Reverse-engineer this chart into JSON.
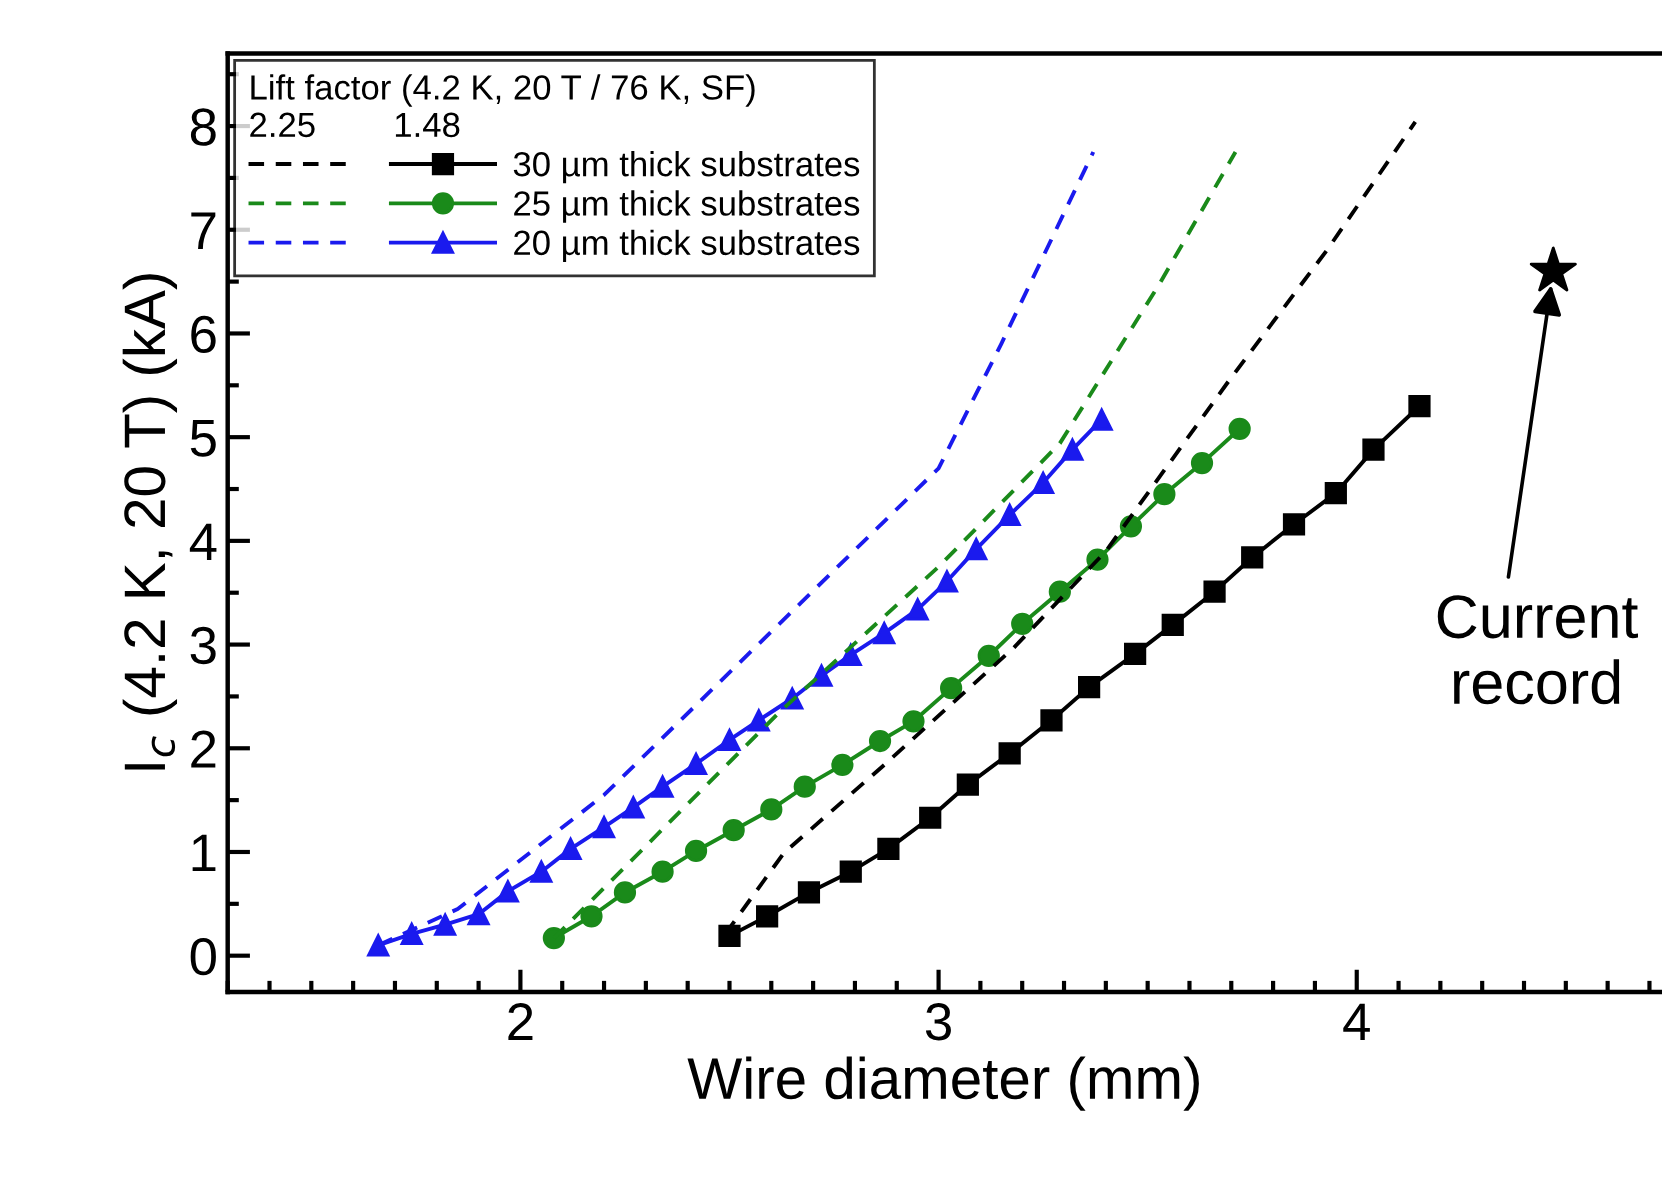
{
  "chart_data": {
    "type": "line",
    "xlabel": "Wire diameter (mm)",
    "ylabel": "I$_{c}$ (4.2 K, 20 T) (kA)",
    "legend_title": "Lift factor (4.2 K, 20 T / 76 K, SF)",
    "xlim": [
      1.3,
      4.73
    ],
    "xticks": [
      2,
      3,
      4
    ],
    "ylim": [
      -0.35,
      8.7
    ],
    "yticks": [
      0,
      1,
      2,
      3,
      4,
      5,
      6,
      7,
      8
    ],
    "grid": false,
    "legend": "top left",
    "series": [
      {
        "name": "30 µm thick substrates",
        "color": "#000000",
        "marker": "square",
        "line_style": "solid",
        "x": [
          2.5,
          2.59,
          2.69,
          2.79,
          2.88,
          2.98,
          3.07,
          3.17,
          3.27,
          3.36,
          3.47,
          3.56,
          3.66,
          3.75,
          3.85,
          3.95,
          4.04,
          4.15
        ],
        "values": [
          0.19,
          0.38,
          0.61,
          0.81,
          1.03,
          1.33,
          1.65,
          1.95,
          2.27,
          2.59,
          2.91,
          3.19,
          3.51,
          3.84,
          4.16,
          4.46,
          4.88,
          5.3
        ]
      },
      {
        "name": "25 µm thick substrates",
        "color": "#1a8a1a",
        "marker": "circle",
        "line_style": "solid",
        "x": [
          2.08,
          2.17,
          2.25,
          2.34,
          2.42,
          2.51,
          2.6,
          2.68,
          2.77,
          2.86,
          2.94,
          3.03,
          3.12,
          3.2,
          3.29,
          3.38,
          3.46,
          3.54,
          3.63,
          3.72
        ],
        "values": [
          0.17,
          0.38,
          0.61,
          0.81,
          1.01,
          1.21,
          1.41,
          1.63,
          1.84,
          2.07,
          2.26,
          2.58,
          2.89,
          3.2,
          3.51,
          3.82,
          4.14,
          4.45,
          4.75,
          5.08
        ]
      },
      {
        "name": "20 µm thick substrates",
        "color": "#1a1aee",
        "marker": "triangle",
        "line_style": "solid",
        "x": [
          1.66,
          1.74,
          1.82,
          1.9,
          1.97,
          2.05,
          2.12,
          2.2,
          2.27,
          2.34,
          2.42,
          2.5,
          2.57,
          2.65,
          2.72,
          2.79,
          2.87,
          2.95,
          3.02,
          3.09,
          3.17,
          3.25,
          3.32,
          3.39
        ],
        "values": [
          0.1,
          0.21,
          0.3,
          0.4,
          0.62,
          0.81,
          1.03,
          1.24,
          1.43,
          1.63,
          1.85,
          2.08,
          2.27,
          2.48,
          2.7,
          2.9,
          3.11,
          3.34,
          3.61,
          3.92,
          4.25,
          4.56,
          4.88,
          5.17
        ]
      },
      {
        "color": "#000000",
        "marker": "none",
        "line_style": "dashed",
        "x": [
          2.49,
          2.63,
          2.87,
          3.18,
          3.4,
          3.69,
          3.93,
          4.14
        ],
        "values": [
          0.21,
          0.99,
          1.84,
          2.97,
          3.9,
          5.52,
          6.81,
          8.04
        ]
      },
      {
        "color": "#1a8a1a",
        "marker": "none",
        "line_style": "dashed",
        "x": [
          2.08,
          2.62,
          3.0,
          3.29,
          3.53,
          3.71
        ],
        "values": [
          0.17,
          2.35,
          3.75,
          4.94,
          6.49,
          7.75
        ]
      },
      {
        "color": "#1a1aee",
        "marker": "none",
        "line_style": "dashed",
        "x": [
          1.66,
          1.85,
          2.2,
          2.67,
          3.0,
          3.15,
          3.37
        ],
        "values": [
          0.1,
          0.45,
          1.55,
          3.4,
          4.7,
          5.9,
          7.75
        ]
      },
      {
        "type": "scatter",
        "color": "#000000",
        "marker": "star",
        "x": [
          4.47
        ],
        "values": [
          6.6
        ]
      }
    ],
    "annotations": [
      "1.48",
      "2.25",
      {
        "text": "Current\nrecord",
        "x": 4.47,
        "y": 6.6
      }
    ]
  }
}
